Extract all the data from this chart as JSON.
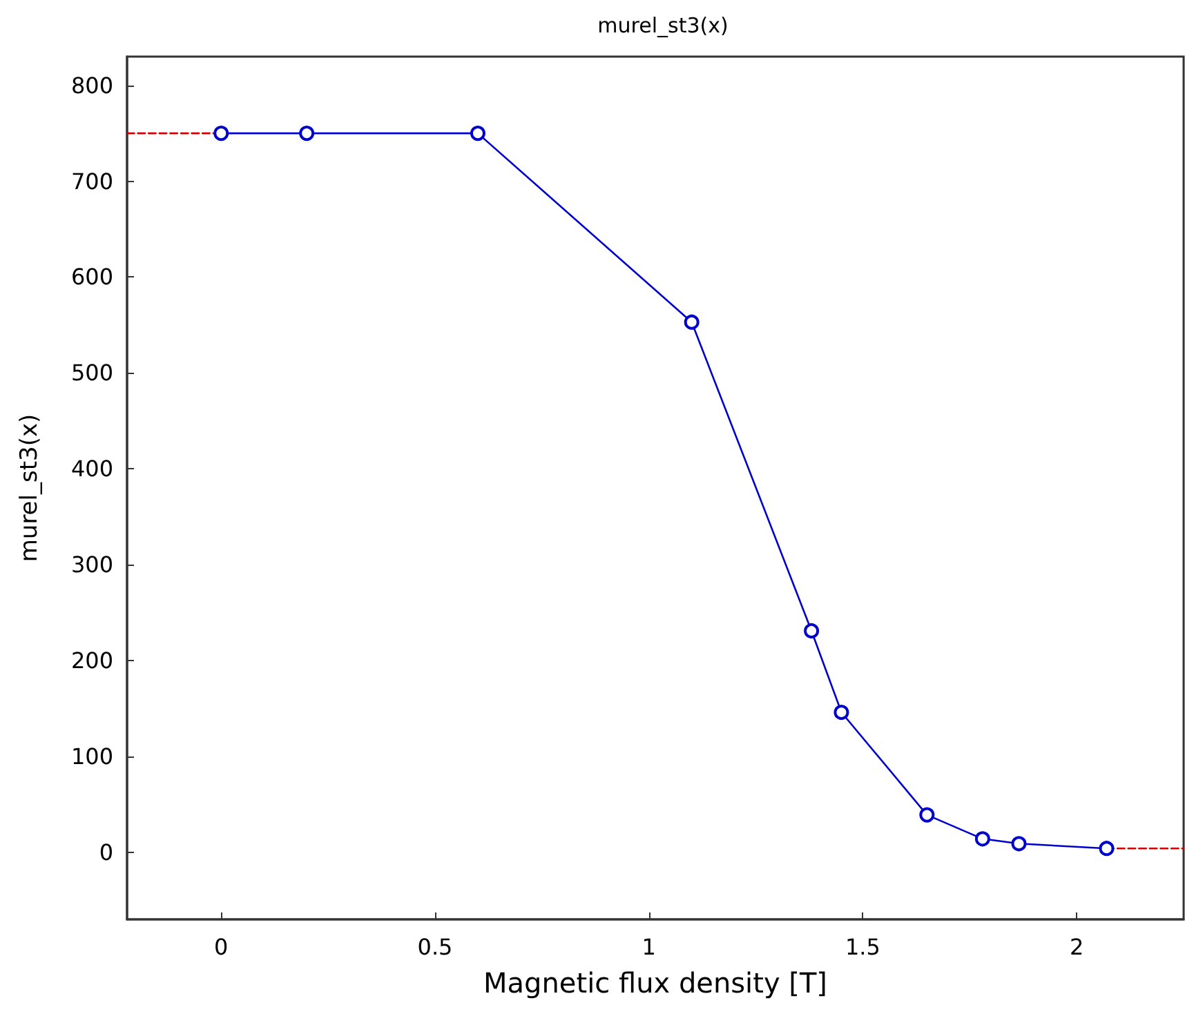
{
  "chart_data": {
    "type": "line",
    "title": "murel_st3(x)",
    "xlabel": "Magnetic flux density [T]",
    "ylabel": "murel_st3(x)",
    "xlim": [
      -0.22,
      2.25
    ],
    "xticks": [
      0,
      0.5,
      1,
      1.5,
      2
    ],
    "ylim": [
      -70,
      830
    ],
    "yticks": [
      0,
      100,
      200,
      300,
      400,
      500,
      600,
      700,
      800
    ],
    "grid": false,
    "series": [
      {
        "color": "#0000cc",
        "marker": "circle",
        "line_style": "solid",
        "x": [
          0,
          0.2,
          0.6,
          1.1,
          1.38,
          1.45,
          1.65,
          1.78,
          1.865,
          2.07
        ],
        "values": [
          750,
          750,
          750,
          553,
          231,
          146,
          39,
          14,
          9,
          4
        ]
      },
      {
        "color": "#cc0000",
        "marker": "none",
        "line_style": "dashed",
        "x": [
          -0.22,
          0
        ],
        "values": [
          750,
          750
        ]
      },
      {
        "color": "#cc0000",
        "marker": "none",
        "line_style": "dashed",
        "x": [
          2.07,
          2.25
        ],
        "values": [
          4,
          4
        ]
      }
    ]
  }
}
